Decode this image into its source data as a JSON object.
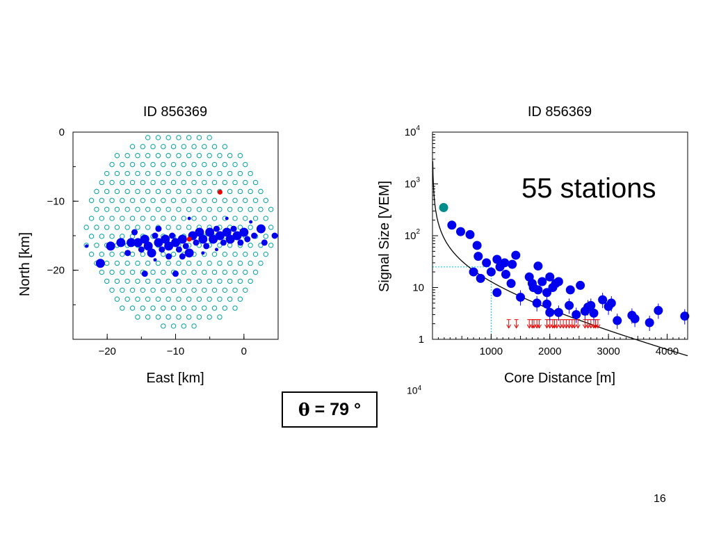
{
  "page_number": "16",
  "zenith_label": {
    "symbol": "θ",
    "text": " = 79 °"
  },
  "stray_label": {
    "base": "10",
    "exp": "4"
  },
  "chart_data": [
    {
      "type": "scatter",
      "title": "ID 856369",
      "xlabel": "East [km]",
      "ylabel": "North [km]",
      "xlim": [
        -25,
        5
      ],
      "ylim": [
        -30,
        0
      ],
      "xticks": [
        -20,
        -10,
        0
      ],
      "yticks": [
        0,
        -10,
        -20
      ],
      "colors": {
        "array_station": "#00a0a0",
        "signal_station": "#0000ee",
        "core": "#ee0000"
      },
      "array_extent": {
        "cx": -9.5,
        "cy": -14,
        "rx": 13.8,
        "ry": 14.5,
        "spacing": 1.5
      },
      "signal_stations": [
        {
          "x": -19.5,
          "y": -16.5,
          "size": 3
        },
        {
          "x": -18,
          "y": -16,
          "size": 3
        },
        {
          "x": -17,
          "y": -17.5,
          "size": 2
        },
        {
          "x": -16.5,
          "y": -16,
          "size": 3
        },
        {
          "x": -15.5,
          "y": -16,
          "size": 3
        },
        {
          "x": -15,
          "y": -17,
          "size": 2
        },
        {
          "x": -14.5,
          "y": -15.5,
          "size": 3
        },
        {
          "x": -14,
          "y": -16.5,
          "size": 3
        },
        {
          "x": -13.5,
          "y": -17.5,
          "size": 3
        },
        {
          "x": -13,
          "y": -15,
          "size": 2
        },
        {
          "x": -12.5,
          "y": -16,
          "size": 3
        },
        {
          "x": -12,
          "y": -17,
          "size": 2
        },
        {
          "x": -11.5,
          "y": -15.5,
          "size": 3
        },
        {
          "x": -11,
          "y": -16.5,
          "size": 3
        },
        {
          "x": -10.5,
          "y": -15,
          "size": 2
        },
        {
          "x": -10,
          "y": -16,
          "size": 3
        },
        {
          "x": -9.5,
          "y": -17,
          "size": 2
        },
        {
          "x": -9,
          "y": -15.5,
          "size": 3
        },
        {
          "x": -8.5,
          "y": -16.5,
          "size": 2
        },
        {
          "x": -8,
          "y": -17.5,
          "size": 3
        },
        {
          "x": -7.5,
          "y": -15,
          "size": 3
        },
        {
          "x": -7,
          "y": -16,
          "size": 2
        },
        {
          "x": -6.5,
          "y": -14.5,
          "size": 3
        },
        {
          "x": -6,
          "y": -15.5,
          "size": 3
        },
        {
          "x": -5.5,
          "y": -16.5,
          "size": 2
        },
        {
          "x": -5,
          "y": -14.5,
          "size": 3
        },
        {
          "x": -4.5,
          "y": -15.5,
          "size": 3
        },
        {
          "x": -4,
          "y": -14,
          "size": 2
        },
        {
          "x": -3.5,
          "y": -15,
          "size": 3
        },
        {
          "x": -3,
          "y": -16,
          "size": 2
        },
        {
          "x": -2.5,
          "y": -14.5,
          "size": 3
        },
        {
          "x": -2,
          "y": -15.5,
          "size": 3
        },
        {
          "x": -1.5,
          "y": -14,
          "size": 2
        },
        {
          "x": -1,
          "y": -15,
          "size": 3
        },
        {
          "x": -0.5,
          "y": -16,
          "size": 2
        },
        {
          "x": 0,
          "y": -14.5,
          "size": 3
        },
        {
          "x": 0.5,
          "y": -15.5,
          "size": 2
        },
        {
          "x": 1.5,
          "y": -15,
          "size": 2
        },
        {
          "x": 2.5,
          "y": -14,
          "size": 3
        },
        {
          "x": 3,
          "y": -16,
          "size": 2
        },
        {
          "x": 4.5,
          "y": -15,
          "size": 2
        },
        {
          "x": -21,
          "y": -19,
          "size": 3
        },
        {
          "x": -14.5,
          "y": -20.5,
          "size": 2
        },
        {
          "x": -10,
          "y": -20.5,
          "size": 2
        },
        {
          "x": -12.5,
          "y": -14,
          "size": 2
        },
        {
          "x": -8,
          "y": -12.5,
          "size": 1
        },
        {
          "x": -9,
          "y": -18,
          "size": 2
        },
        {
          "x": -11,
          "y": -18,
          "size": 2
        },
        {
          "x": -6,
          "y": -17.5,
          "size": 1
        },
        {
          "x": -4,
          "y": -17,
          "size": 1
        },
        {
          "x": -2.5,
          "y": -12.5,
          "size": 1
        },
        {
          "x": 1,
          "y": -13,
          "size": 1
        },
        {
          "x": -23,
          "y": -16.5,
          "size": 1
        },
        {
          "x": -16,
          "y": -14.5,
          "size": 2
        },
        {
          "x": -13,
          "y": -18.5,
          "size": 1
        }
      ],
      "core_markers": [
        {
          "x": -8,
          "y": -15.5
        },
        {
          "x": -3.5,
          "y": -8.7
        }
      ]
    },
    {
      "type": "scatter",
      "title": "ID 856369",
      "xlabel": "Core Distance [m]",
      "ylabel": "Signal Size [VEM]",
      "annotation": "55 stations",
      "xlim": [
        0,
        4350
      ],
      "ylim": [
        1,
        10000
      ],
      "yscale": "log",
      "xticks": [
        1000,
        2000,
        3000,
        4000
      ],
      "yticks": [
        {
          "value": 1,
          "base": "1",
          "exp": ""
        },
        {
          "value": 10,
          "base": "10",
          "exp": ""
        },
        {
          "value": 100,
          "base": "10",
          "exp": "2"
        },
        {
          "value": 1000,
          "base": "10",
          "exp": "3"
        },
        {
          "value": 10000,
          "base": "10",
          "exp": "4"
        }
      ],
      "colors": {
        "points": "#0000ee",
        "saturated": "#008b8b",
        "upper_limits": "#ee0000",
        "fit": "#000000",
        "reference": "#00c0e0"
      },
      "fit_curve": {
        "a": 11700,
        "b": 0.05,
        "r0": 700,
        "rmax": 4350
      },
      "reference": {
        "x": 1000,
        "y": 25
      },
      "saturated_point": {
        "x": 190,
        "y": 350
      },
      "points": [
        {
          "x": 330,
          "y": 160
        },
        {
          "x": 480,
          "y": 120
        },
        {
          "x": 640,
          "y": 105
        },
        {
          "x": 760,
          "y": 65
        },
        {
          "x": 780,
          "y": 40
        },
        {
          "x": 920,
          "y": 30
        },
        {
          "x": 1100,
          "y": 35
        },
        {
          "x": 1150,
          "y": 25
        },
        {
          "x": 1230,
          "y": 30
        },
        {
          "x": 1360,
          "y": 28
        },
        {
          "x": 1420,
          "y": 42
        },
        {
          "x": 1800,
          "y": 26
        },
        {
          "x": 700,
          "y": 20
        },
        {
          "x": 820,
          "y": 15
        },
        {
          "x": 1000,
          "y": 20
        },
        {
          "x": 1250,
          "y": 18
        },
        {
          "x": 1340,
          "y": 12
        },
        {
          "x": 1500,
          "y": 6.5
        },
        {
          "x": 1650,
          "y": 16
        },
        {
          "x": 1720,
          "y": 10
        },
        {
          "x": 1800,
          "y": 9
        },
        {
          "x": 1870,
          "y": 13
        },
        {
          "x": 2000,
          "y": 16
        },
        {
          "x": 2050,
          "y": 10
        },
        {
          "x": 2100,
          "y": 12
        },
        {
          "x": 2150,
          "y": 13
        },
        {
          "x": 2350,
          "y": 9
        },
        {
          "x": 2520,
          "y": 11
        },
        {
          "x": 1100,
          "y": 8
        },
        {
          "x": 1700,
          "y": 12
        },
        {
          "x": 1780,
          "y": 5
        },
        {
          "x": 1950,
          "y": 4.8
        },
        {
          "x": 2000,
          "y": 3.3
        },
        {
          "x": 2150,
          "y": 3.3
        },
        {
          "x": 2330,
          "y": 4.5
        },
        {
          "x": 2450,
          "y": 3
        },
        {
          "x": 2600,
          "y": 3.5
        },
        {
          "x": 2650,
          "y": 4.2
        },
        {
          "x": 2750,
          "y": 3.2
        },
        {
          "x": 2900,
          "y": 5.8
        },
        {
          "x": 3000,
          "y": 4.3
        },
        {
          "x": 3050,
          "y": 5
        },
        {
          "x": 3150,
          "y": 2.3
        },
        {
          "x": 3400,
          "y": 2.9
        },
        {
          "x": 3450,
          "y": 2.5
        },
        {
          "x": 3700,
          "y": 2.1
        },
        {
          "x": 3850,
          "y": 3.6
        },
        {
          "x": 4300,
          "y": 2.8
        },
        {
          "x": 2700,
          "y": 4.5
        },
        {
          "x": 1950,
          "y": 8
        }
      ],
      "upper_limits": [
        1300,
        1430,
        1650,
        1700,
        1730,
        1780,
        1820,
        1950,
        2000,
        2050,
        2080,
        2120,
        2180,
        2230,
        2280,
        2330,
        2380,
        2420,
        2480,
        2600,
        2650,
        2700,
        2750,
        2780,
        2820
      ]
    }
  ]
}
